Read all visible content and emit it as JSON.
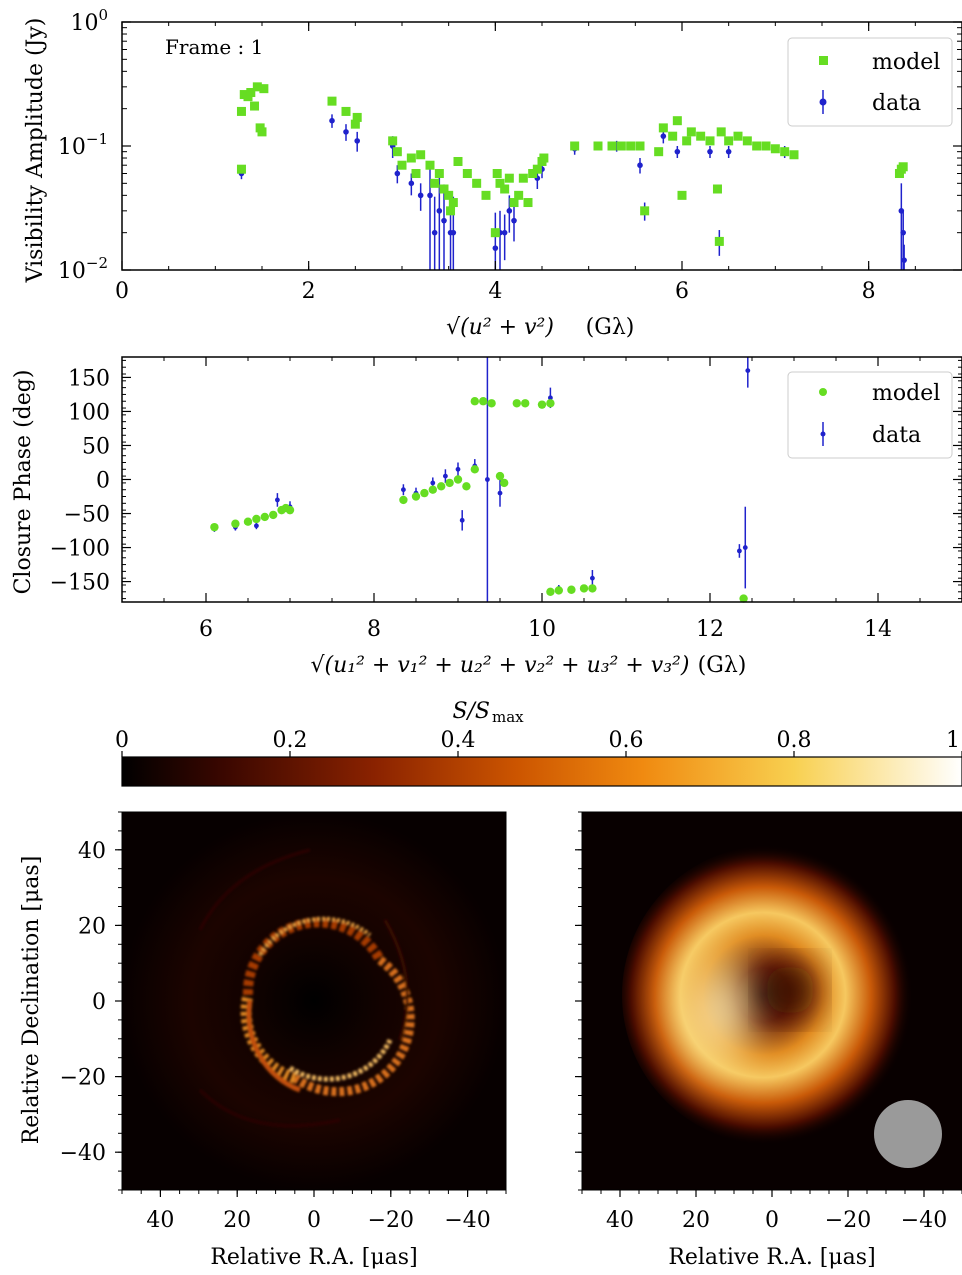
{
  "colors": {
    "model": "#66dd22",
    "data": "#1f22cc",
    "axes": "#000000",
    "beam": "#9a9a9a"
  },
  "chart_data": [
    {
      "type": "scatter",
      "id": "visibility-amplitude",
      "annotation": "Frame : 1",
      "ylabel": "Visibility Amplitude (Jy)",
      "xlabel_math": "√(u² + v²)",
      "xlabel_unit": "(Gλ)",
      "xlim": [
        0,
        9
      ],
      "ylim": [
        0.01,
        1
      ],
      "yscale": "log",
      "x_ticks": [
        "0",
        "2",
        "4",
        "6",
        "8"
      ],
      "y_ticks": [
        {
          "base": "10",
          "exp": "0"
        },
        {
          "base": "10",
          "exp": "−1"
        },
        {
          "base": "10",
          "exp": "−2"
        }
      ],
      "legend": {
        "position": "top-right",
        "entries": [
          "model",
          "data"
        ]
      },
      "series": [
        {
          "name": "model",
          "marker": "square",
          "points": [
            [
              1.28,
              0.065
            ],
            [
              1.28,
              0.19
            ],
            [
              1.31,
              0.26
            ],
            [
              1.35,
              0.25
            ],
            [
              1.38,
              0.27
            ],
            [
              1.42,
              0.21
            ],
            [
              1.45,
              0.3
            ],
            [
              1.48,
              0.14
            ],
            [
              1.5,
              0.13
            ],
            [
              1.52,
              0.29
            ],
            [
              2.25,
              0.23
            ],
            [
              2.4,
              0.19
            ],
            [
              2.5,
              0.15
            ],
            [
              2.52,
              0.17
            ],
            [
              2.9,
              0.11
            ],
            [
              2.95,
              0.09
            ],
            [
              3.0,
              0.07
            ],
            [
              3.1,
              0.08
            ],
            [
              3.15,
              0.06
            ],
            [
              3.2,
              0.085
            ],
            [
              3.3,
              0.07
            ],
            [
              3.35,
              0.05
            ],
            [
              3.4,
              0.06
            ],
            [
              3.45,
              0.045
            ],
            [
              3.5,
              0.04
            ],
            [
              3.52,
              0.03
            ],
            [
              3.55,
              0.035
            ],
            [
              3.6,
              0.075
            ],
            [
              3.7,
              0.06
            ],
            [
              3.8,
              0.05
            ],
            [
              3.9,
              0.04
            ],
            [
              4.0,
              0.02
            ],
            [
              4.02,
              0.06
            ],
            [
              4.05,
              0.05
            ],
            [
              4.1,
              0.045
            ],
            [
              4.15,
              0.055
            ],
            [
              4.2,
              0.035
            ],
            [
              4.25,
              0.04
            ],
            [
              4.3,
              0.055
            ],
            [
              4.35,
              0.035
            ],
            [
              4.4,
              0.06
            ],
            [
              4.45,
              0.065
            ],
            [
              4.5,
              0.075
            ],
            [
              4.52,
              0.08
            ],
            [
              4.85,
              0.1
            ],
            [
              5.1,
              0.1
            ],
            [
              5.25,
              0.1
            ],
            [
              5.35,
              0.1
            ],
            [
              5.45,
              0.1
            ],
            [
              5.55,
              0.1
            ],
            [
              5.6,
              0.03
            ],
            [
              5.75,
              0.09
            ],
            [
              5.8,
              0.14
            ],
            [
              5.9,
              0.12
            ],
            [
              5.95,
              0.16
            ],
            [
              6.0,
              0.04
            ],
            [
              6.05,
              0.11
            ],
            [
              6.1,
              0.13
            ],
            [
              6.2,
              0.12
            ],
            [
              6.3,
              0.11
            ],
            [
              6.38,
              0.045
            ],
            [
              6.4,
              0.017
            ],
            [
              6.42,
              0.13
            ],
            [
              6.5,
              0.11
            ],
            [
              6.6,
              0.12
            ],
            [
              6.7,
              0.11
            ],
            [
              6.8,
              0.1
            ],
            [
              6.9,
              0.1
            ],
            [
              7.0,
              0.095
            ],
            [
              7.1,
              0.09
            ],
            [
              7.2,
              0.085
            ],
            [
              8.33,
              0.06
            ],
            [
              8.35,
              0.065
            ],
            [
              8.37,
              0.068
            ]
          ]
        },
        {
          "name": "data",
          "marker": "errorbar-dot",
          "points": [
            [
              1.28,
              0.06,
              0.006
            ],
            [
              2.25,
              0.16,
              0.02
            ],
            [
              2.4,
              0.13,
              0.02
            ],
            [
              2.52,
              0.11,
              0.02
            ],
            [
              2.9,
              0.1,
              0.02
            ],
            [
              2.95,
              0.06,
              0.01
            ],
            [
              3.1,
              0.05,
              0.01
            ],
            [
              3.2,
              0.04,
              0.01
            ],
            [
              3.3,
              0.04,
              0.03
            ],
            [
              3.35,
              0.02,
              0.019
            ],
            [
              3.4,
              0.03,
              0.029
            ],
            [
              3.45,
              0.025,
              0.024
            ],
            [
              3.52,
              0.02,
              0.019
            ],
            [
              3.55,
              0.02,
              0.019
            ],
            [
              4.0,
              0.015,
              0.014
            ],
            [
              4.05,
              0.02,
              0.01
            ],
            [
              4.1,
              0.02,
              0.008
            ],
            [
              4.15,
              0.03,
              0.01
            ],
            [
              4.2,
              0.025,
              0.008
            ],
            [
              4.45,
              0.055,
              0.01
            ],
            [
              4.5,
              0.065,
              0.01
            ],
            [
              4.85,
              0.095,
              0.01
            ],
            [
              5.3,
              0.1,
              0.01
            ],
            [
              5.55,
              0.07,
              0.01
            ],
            [
              5.6,
              0.03,
              0.005
            ],
            [
              5.8,
              0.12,
              0.015
            ],
            [
              5.95,
              0.09,
              0.01
            ],
            [
              6.3,
              0.09,
              0.01
            ],
            [
              6.4,
              0.017,
              0.004
            ],
            [
              6.5,
              0.09,
              0.01
            ],
            [
              7.1,
              0.09,
              0.01
            ],
            [
              8.35,
              0.03,
              0.02
            ],
            [
              8.37,
              0.02,
              0.01
            ],
            [
              8.38,
              0.012,
              0.004
            ]
          ]
        }
      ]
    },
    {
      "type": "scatter",
      "id": "closure-phase",
      "ylabel": "Closure Phase (deg)",
      "xlabel_math": "√(u₁² + v₁² + u₂² + v₂² + u₃² + v₃²)",
      "xlabel_unit": "(Gλ)",
      "xlim": [
        5,
        15
      ],
      "ylim": [
        -180,
        180
      ],
      "x_ticks": [
        "6",
        "8",
        "10",
        "12",
        "14"
      ],
      "y_ticks": [
        "150",
        "100",
        "50",
        "0",
        "−50",
        "−100",
        "−150"
      ],
      "legend": {
        "position": "top-right",
        "entries": [
          "model",
          "data"
        ]
      },
      "series": [
        {
          "name": "model",
          "marker": "circle",
          "points": [
            [
              6.1,
              -70
            ],
            [
              6.35,
              -65
            ],
            [
              6.5,
              -62
            ],
            [
              6.6,
              -58
            ],
            [
              6.7,
              -55
            ],
            [
              6.8,
              -52
            ],
            [
              6.9,
              -45
            ],
            [
              6.95,
              -42
            ],
            [
              7.0,
              -45
            ],
            [
              8.35,
              -30
            ],
            [
              8.5,
              -25
            ],
            [
              8.6,
              -20
            ],
            [
              8.7,
              -15
            ],
            [
              8.8,
              -10
            ],
            [
              8.9,
              -5
            ],
            [
              9.0,
              0
            ],
            [
              9.1,
              -10
            ],
            [
              9.2,
              15
            ],
            [
              9.2,
              115
            ],
            [
              9.3,
              115
            ],
            [
              9.4,
              112
            ],
            [
              9.5,
              5
            ],
            [
              9.55,
              -5
            ],
            [
              9.7,
              112
            ],
            [
              9.8,
              112
            ],
            [
              10.0,
              110
            ],
            [
              10.1,
              112
            ],
            [
              10.1,
              -165
            ],
            [
              10.2,
              -163
            ],
            [
              10.35,
              -162
            ],
            [
              10.5,
              -160
            ],
            [
              10.6,
              -160
            ],
            [
              12.4,
              -175
            ]
          ]
        },
        {
          "name": "data",
          "marker": "errorbar-dot",
          "points": [
            [
              6.1,
              -72,
              5
            ],
            [
              6.35,
              -70,
              5
            ],
            [
              6.6,
              -68,
              5
            ],
            [
              6.85,
              -30,
              10
            ],
            [
              7.0,
              -40,
              8
            ],
            [
              8.35,
              -15,
              8
            ],
            [
              8.5,
              -20,
              8
            ],
            [
              8.7,
              -5,
              8
            ],
            [
              8.85,
              5,
              10
            ],
            [
              9.0,
              15,
              10
            ],
            [
              9.05,
              -60,
              15
            ],
            [
              9.2,
              20,
              10
            ],
            [
              9.35,
              0,
              180
            ],
            [
              9.5,
              -20,
              20
            ],
            [
              10.1,
              120,
              15
            ],
            [
              10.2,
              -160,
              5
            ],
            [
              10.6,
              -145,
              12
            ],
            [
              12.35,
              -105,
              10
            ],
            [
              12.42,
              -100,
              60
            ],
            [
              12.45,
              160,
              25
            ]
          ]
        }
      ]
    },
    {
      "type": "heatmap",
      "id": "colorbar",
      "label_math": "S/S_max",
      "label_parts": {
        "main": "S/S",
        "sub": "max"
      },
      "ticks": [
        "0",
        "0.2",
        "0.4",
        "0.6",
        "0.8",
        "1"
      ],
      "range": [
        0,
        1
      ],
      "colormap": [
        "#000000",
        "#3a0700",
        "#8a2200",
        "#cc5500",
        "#f08a10",
        "#f8d050",
        "#ffffff"
      ]
    },
    {
      "type": "heatmap",
      "id": "image-left",
      "ylabel": "Relative Declination [μas]",
      "xlabel": "Relative R.A. [μas]",
      "x_ticks": [
        "40",
        "20",
        "0",
        "−20",
        "−40"
      ],
      "y_ticks": [
        "40",
        "20",
        "0",
        "−20",
        "−40"
      ],
      "xlim": [
        50,
        -50
      ],
      "ylim": [
        -50,
        50
      ],
      "ring": {
        "center": [
          0,
          0
        ],
        "radius_uas": 19,
        "brightness_peak": 0.8
      }
    },
    {
      "type": "heatmap",
      "id": "image-right",
      "xlabel": "Relative R.A. [μas]",
      "x_ticks": [
        "40",
        "20",
        "0",
        "−20",
        "−40"
      ],
      "xlim": [
        50,
        -50
      ],
      "ylim": [
        -50,
        50
      ],
      "ring": {
        "center": [
          -5,
          3
        ],
        "radius_uas": 22,
        "brightness_peak": 1.0
      },
      "beam": {
        "center": [
          -35,
          -35
        ],
        "radius_uas": 9
      }
    }
  ]
}
